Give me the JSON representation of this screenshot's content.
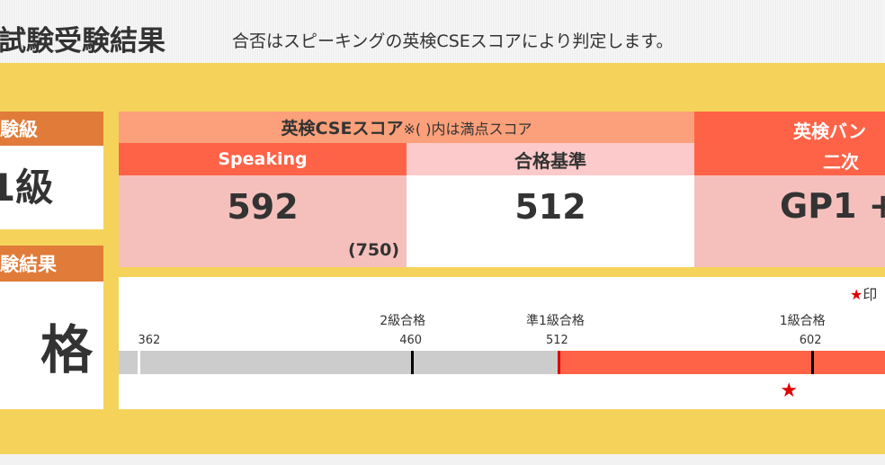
{
  "header": {
    "title": "試験受験結果",
    "subtitle": "合否はスピーキングの英検CSEスコアにより判定します。"
  },
  "left": {
    "grade_label": "験級",
    "grade_value": "1級",
    "result_label": "験結果",
    "result_value": "格"
  },
  "score_table": {
    "header": "英検CSEスコア",
    "header_note": "※( )内は満点スコア",
    "speaking_label": "Speaking",
    "speaking_score": "592",
    "speaking_max": "(750)",
    "pass_label": "合格基準",
    "pass_score": "512"
  },
  "band": {
    "header": "英検バン",
    "sub": "二次",
    "value": "GP1 +"
  },
  "scale": {
    "legend": "★印",
    "ticks": [
      {
        "value": "362"
      },
      {
        "value": "460",
        "level": "2級合格"
      },
      {
        "value": "512",
        "level": "準1級合格"
      },
      {
        "value": "602",
        "level": "1級合格"
      }
    ],
    "score": 592,
    "pass_threshold": 512,
    "colors": {
      "below": "#cccccc",
      "above": "#ff6347",
      "marker": "#e00000"
    }
  }
}
